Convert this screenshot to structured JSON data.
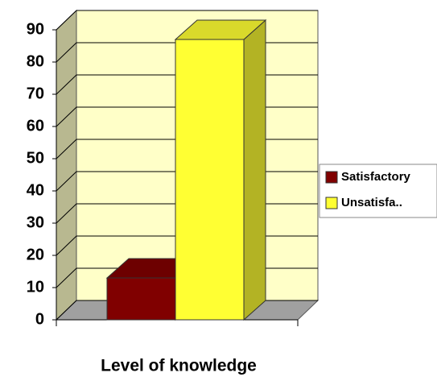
{
  "chart_data": {
    "type": "bar3d",
    "x_label": "Level of knowledge",
    "categories": [
      null
    ],
    "series": [
      {
        "name": "Satisfactory",
        "color": "#800000",
        "values": [
          13
        ]
      },
      {
        "name": "Unsatisfa..",
        "color": "#ffff33",
        "values": [
          87
        ]
      }
    ],
    "ylim": [
      0,
      90
    ],
    "yticks": [
      0,
      10,
      20,
      30,
      40,
      50,
      60,
      70,
      80,
      90
    ],
    "grid": true,
    "legend": "right"
  }
}
